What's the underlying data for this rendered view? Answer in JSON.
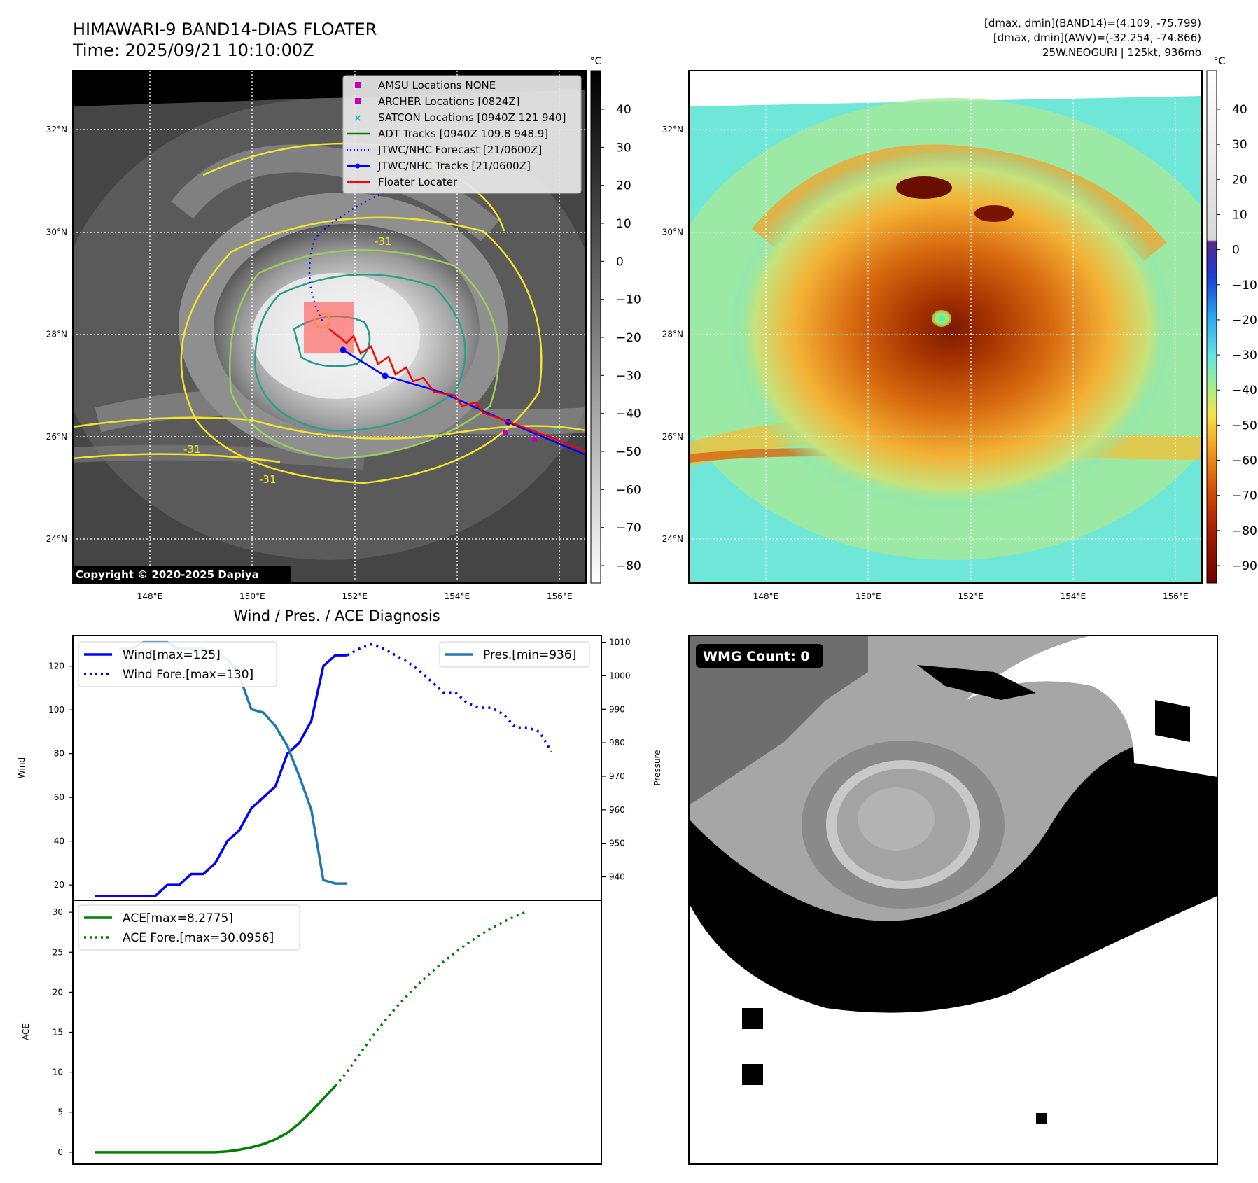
{
  "header": {
    "title": "HIMAWARI-9 BAND14-DIAS FLOATER",
    "time": "Time: 2025/09/21 10:10:00Z",
    "dmax_band14": "[dmax, dmin](BAND14)=(4.109, -75.799)",
    "dmax_awv": "[dmax, dmin](AWV)=(-32.254, -74.866)",
    "storm": "25W.NEOGURI | 125kt, 936mb"
  },
  "maps": {
    "lon_ticks": [
      "148°E",
      "150°E",
      "152°E",
      "154°E",
      "156°E"
    ],
    "lat_ticks": [
      "32°N",
      "30°N",
      "28°N",
      "26°N",
      "24°N"
    ],
    "contour_label": "-31",
    "copyright": "Copyright © 2020-2025 Dapiya",
    "colorbar_unit": "°C",
    "colorbar1_ticks": [
      "40",
      "30",
      "20",
      "10",
      "0",
      "−10",
      "−20",
      "−30",
      "−40",
      "−50",
      "−60",
      "−70",
      "−80"
    ],
    "colorbar2_ticks": [
      "40",
      "30",
      "20",
      "10",
      "0",
      "−10",
      "−20",
      "−30",
      "−40",
      "−50",
      "−60",
      "−70",
      "−80",
      "−90"
    ],
    "legend": [
      {
        "label": "AMSU Locations NONE",
        "color": "#bf00bf",
        "marker": "square"
      },
      {
        "label": "ARCHER Locations [0824Z]",
        "color": "#bf00bf",
        "marker": "square"
      },
      {
        "label": "SATCON Locations [0940Z 121 940]",
        "color": "#17becf",
        "marker": "x"
      },
      {
        "label": "ADT Tracks [0940Z 109.8 948.9]",
        "color": "#007f00",
        "marker": "line"
      },
      {
        "label": "JTWC/NHC Forecast [21/0600Z]",
        "color": "#0000ff",
        "marker": "dotted"
      },
      {
        "label": "JTWC/NHC Tracks [21/0600Z]",
        "color": "#0000ff",
        "marker": "line-dot"
      },
      {
        "label": "Floater Locater",
        "color": "#ff0000",
        "marker": "line"
      }
    ]
  },
  "wmg": {
    "label": "WMG Count: 0"
  },
  "chart_data": [
    {
      "type": "line",
      "title": "Wind / Pres. / ACE Diagnosis",
      "ylabel": "Wind",
      "y2label": "Pressure",
      "ylim": [
        13,
        134
      ],
      "y2lim": [
        933,
        1012
      ],
      "yticks": [
        20,
        40,
        60,
        80,
        100,
        120
      ],
      "y2ticks": [
        940,
        950,
        960,
        970,
        980,
        990,
        1000,
        1010
      ],
      "legend_left": [
        "Wind[max=125]",
        "Wind Fore.[max=130]"
      ],
      "legend_right": [
        "Pres.[min=936]"
      ],
      "series": [
        {
          "name": "Wind[max=125]",
          "color": "#0000ff",
          "style": "solid",
          "axis": "left",
          "values": [
            15,
            15,
            15,
            15,
            15,
            15,
            20,
            20,
            25,
            25,
            30,
            40,
            45,
            55,
            60,
            65,
            80,
            85,
            95,
            120,
            125,
            125
          ]
        },
        {
          "name": "Wind Fore.[max=130]",
          "color": "#0000ff",
          "style": "dotted",
          "axis": "left",
          "start": 21,
          "values": [
            125,
            128,
            130,
            128,
            125,
            122,
            118,
            113,
            108,
            108,
            103,
            101,
            101,
            98,
            92,
            92,
            90,
            81
          ]
        },
        {
          "name": "Pres.[min=936]",
          "color": "#1f77b4",
          "style": "solid",
          "axis": "right",
          "start": 2,
          "values": [
            1008,
            1008,
            1010,
            1010,
            1010,
            1008,
            1008,
            1008,
            1007,
            1005,
            1000,
            990,
            989,
            985,
            979,
            970,
            960,
            939,
            938,
            938
          ]
        }
      ]
    },
    {
      "type": "line",
      "ylabel": "ACE",
      "ylim": [
        -1.5,
        31.5
      ],
      "yticks": [
        0,
        5,
        10,
        15,
        20,
        25,
        30
      ],
      "legend": [
        "ACE[max=8.2775]",
        "ACE Fore.[max=30.0956]"
      ],
      "series": [
        {
          "name": "ACE[max=8.2775]",
          "color": "#008000",
          "style": "solid",
          "values": [
            0,
            0,
            0,
            0,
            0,
            0,
            0,
            0,
            0,
            0,
            0,
            0.1,
            0.3,
            0.6,
            1.0,
            1.6,
            2.4,
            3.6,
            5.1,
            6.7,
            8.2775
          ]
        },
        {
          "name": "ACE Fore.[max=30.0956]",
          "color": "#008000",
          "style": "dotted",
          "start": 20,
          "values": [
            8.2775,
            10.1,
            12.2,
            14.3,
            16.2,
            18.0,
            19.6,
            21.1,
            22.5,
            23.8,
            25.0,
            26.1,
            27.1,
            28.0,
            28.8,
            29.5,
            30.0956
          ]
        }
      ]
    }
  ]
}
